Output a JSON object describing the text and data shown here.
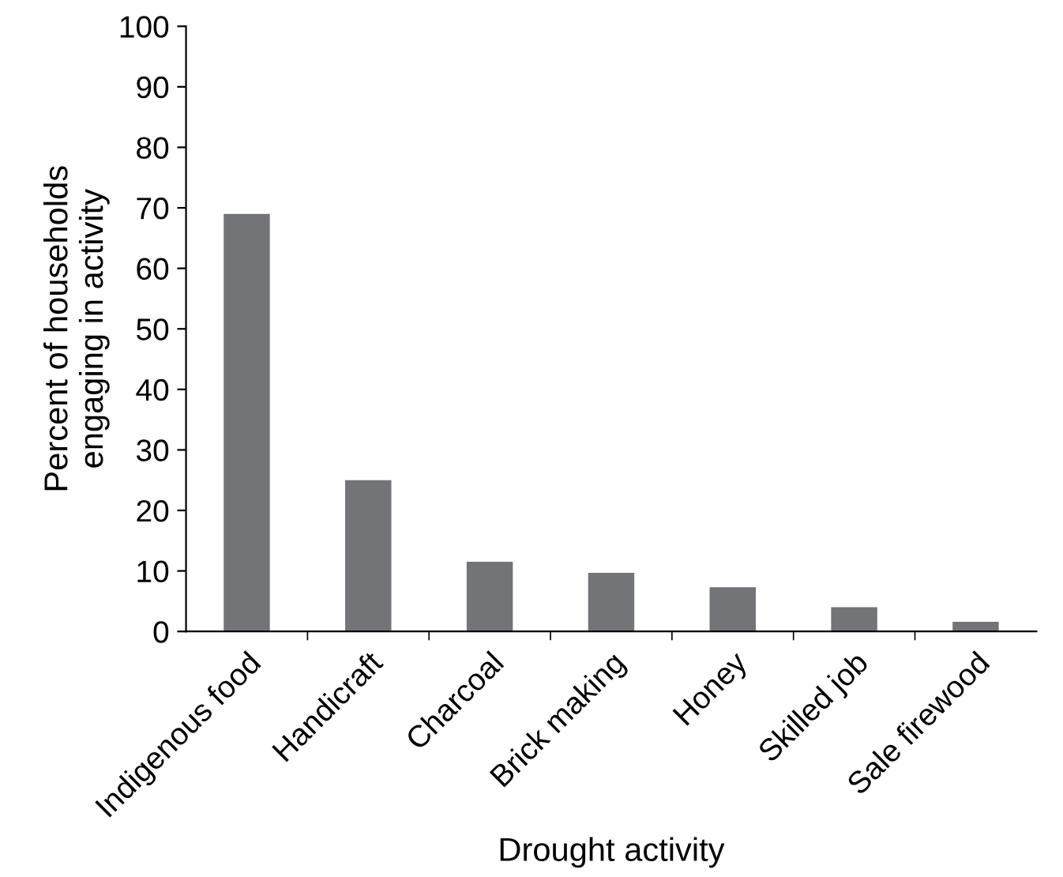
{
  "chart_data": {
    "type": "bar",
    "xlabel": "Drought activity",
    "ylabel": "Percent of households\nengaging in activity",
    "categories": [
      "Indigenous food",
      "Handicraft",
      "Charcoal",
      "Brick making",
      "Honey",
      "Skilled job",
      "Sale firewood"
    ],
    "values": [
      69,
      25,
      11.5,
      9.7,
      7.3,
      4,
      1.6
    ],
    "color": "#737478",
    "ylim": [
      0,
      100
    ],
    "yticks": [
      0,
      10,
      20,
      30,
      40,
      50,
      60,
      70,
      80,
      90,
      100
    ],
    "grid": false
  }
}
